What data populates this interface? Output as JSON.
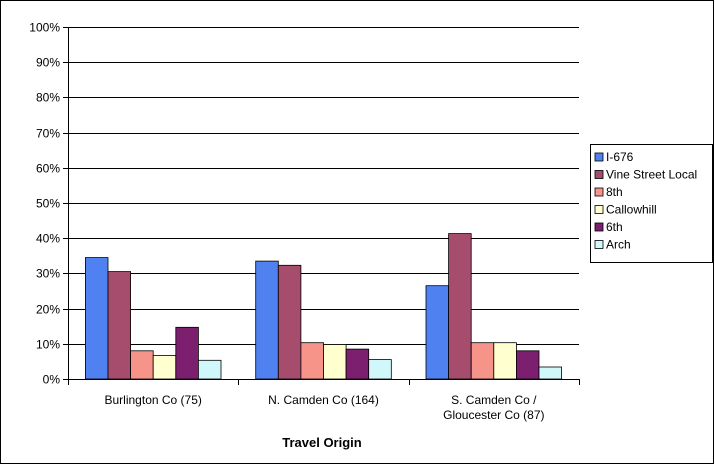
{
  "chart_data": {
    "type": "bar",
    "title": "",
    "xlabel": "Travel Origin",
    "ylabel": "",
    "ylim": [
      0,
      100
    ],
    "y_ticks": [
      "0%",
      "10%",
      "20%",
      "30%",
      "40%",
      "50%",
      "60%",
      "70%",
      "80%",
      "90%",
      "100%"
    ],
    "categories": [
      [
        "Burlington Co (75)"
      ],
      [
        "N. Camden Co (164)"
      ],
      [
        "S. Camden Co /",
        "Gloucester Co (87)"
      ]
    ],
    "series": [
      {
        "name": "I-676",
        "color": "#4f81f0",
        "values": [
          34.5,
          33.5,
          26.5
        ]
      },
      {
        "name": "Vine Street Local",
        "color": "#a64d6e",
        "values": [
          30.5,
          32.3,
          41.3
        ]
      },
      {
        "name": "8th",
        "color": "#f7948a",
        "values": [
          8.0,
          10.3,
          10.3
        ]
      },
      {
        "name": "Callowhill",
        "color": "#ffffd0",
        "values": [
          6.7,
          9.8,
          10.3
        ]
      },
      {
        "name": "6th",
        "color": "#7b1f6e",
        "values": [
          14.7,
          8.5,
          8.0
        ]
      },
      {
        "name": "Arch",
        "color": "#d0f8fb",
        "values": [
          5.3,
          5.5,
          3.4
        ]
      }
    ],
    "grid": true,
    "legend_position": "right"
  }
}
